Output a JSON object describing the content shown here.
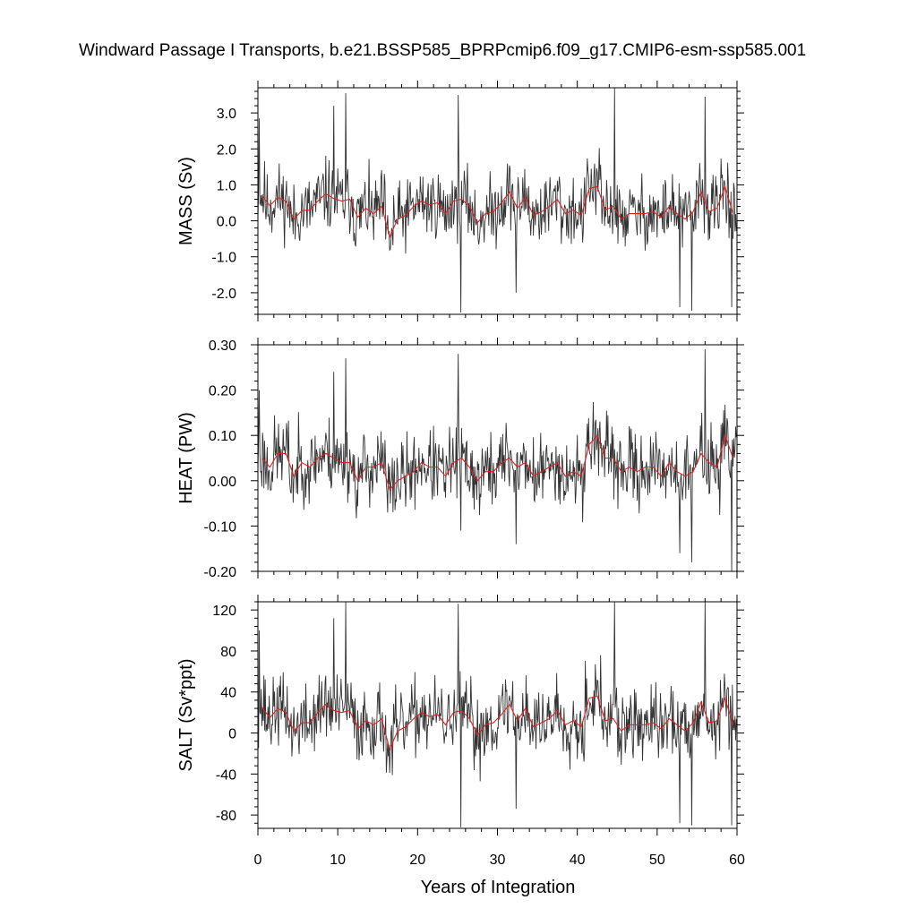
{
  "title": "Windward Passage I Transports, b.e21.BSSP585_BPRPcmip6.f09_g17.CMIP6-esm-ssp585.001",
  "xlabel": "Years of Integration",
  "colors": {
    "raw": "#333333",
    "annual_mean": "#dd2222",
    "axes": "#000000"
  },
  "chart_data": [
    {
      "type": "line",
      "name": "mass",
      "ylabel": "MASS (Sv)",
      "xlim": [
        0,
        60
      ],
      "ylim": [
        -2.6,
        3.7
      ],
      "yticks": [
        -2.0,
        -1.0,
        0.0,
        1.0,
        2.0,
        3.0
      ],
      "ytick_labels": [
        "-2.0",
        "-1.0",
        "0.0",
        "1.0",
        "2.0",
        "3.0"
      ],
      "xticks": [
        0,
        10,
        20,
        30,
        40,
        50,
        60
      ],
      "xtick_labels": [
        "0",
        "10",
        "20",
        "30",
        "40",
        "50",
        "60"
      ],
      "show_xtick_labels": false,
      "annual_mean": [
        0.7,
        0.42,
        0.65,
        0.55,
        0.05,
        0.28,
        0.3,
        0.55,
        0.75,
        0.62,
        0.55,
        0.6,
        0.1,
        0.35,
        0.2,
        0.4,
        -0.45,
        0.05,
        0.15,
        0.4,
        0.55,
        0.45,
        0.5,
        0.2,
        0.55,
        0.6,
        0.4,
        -0.05,
        0.2,
        0.25,
        0.5,
        0.8,
        0.35,
        0.65,
        0.15,
        0.25,
        0.4,
        0.6,
        0.2,
        0.3,
        0.15,
        0.9,
        0.95,
        0.3,
        0.4,
        0.05,
        0.2,
        0.2,
        0.2,
        0.25,
        0.1,
        0.4,
        0.2,
        0.05,
        0.25,
        0.8,
        0.25,
        0.35,
        0.95,
        0.2
      ],
      "extremes": [
        [
          0.2,
          2.85
        ],
        [
          11.0,
          3.55
        ],
        [
          25.1,
          3.5
        ],
        [
          25.4,
          -2.55
        ],
        [
          44.7,
          3.7
        ],
        [
          56.0,
          3.45
        ],
        [
          52.8,
          -2.4
        ],
        [
          54.3,
          -2.5
        ],
        [
          59.3,
          -2.4
        ],
        [
          32.3,
          -2.0
        ],
        [
          9.5,
          3.2
        ]
      ],
      "noise_amplitude": 0.9,
      "seed": 11
    },
    {
      "type": "line",
      "name": "heat",
      "ylabel": "HEAT (PW)",
      "xlim": [
        0,
        60
      ],
      "ylim": [
        -0.2,
        0.3
      ],
      "yticks": [
        -0.2,
        -0.1,
        0.0,
        0.1,
        0.2,
        0.3
      ],
      "ytick_labels": [
        "-0.20",
        "-0.10",
        "0.00",
        "0.10",
        "0.20",
        "0.30"
      ],
      "xticks": [
        0,
        10,
        20,
        30,
        40,
        50,
        60
      ],
      "xtick_labels": [
        "0",
        "10",
        "20",
        "30",
        "40",
        "50",
        "60"
      ],
      "show_xtick_labels": false,
      "annual_mean": [
        0.05,
        0.03,
        0.06,
        0.06,
        0.01,
        0.04,
        0.03,
        0.05,
        0.06,
        0.05,
        0.04,
        0.04,
        0.0,
        0.03,
        0.03,
        0.04,
        -0.02,
        0.0,
        0.01,
        0.02,
        0.04,
        0.03,
        0.03,
        0.01,
        0.04,
        0.05,
        0.03,
        0.0,
        0.02,
        0.02,
        0.04,
        0.05,
        0.03,
        0.04,
        0.01,
        0.02,
        0.03,
        0.04,
        0.01,
        0.02,
        0.01,
        0.08,
        0.1,
        0.05,
        0.05,
        0.02,
        0.03,
        0.02,
        0.03,
        0.03,
        0.01,
        0.04,
        0.02,
        0.01,
        0.02,
        0.06,
        0.04,
        0.03,
        0.1,
        0.05
      ],
      "extremes": [
        [
          0.2,
          0.2
        ],
        [
          11.0,
          0.27
        ],
        [
          25.1,
          0.28
        ],
        [
          25.4,
          -0.11
        ],
        [
          56.0,
          0.29
        ],
        [
          54.3,
          -0.18
        ],
        [
          59.3,
          -0.2
        ],
        [
          32.3,
          -0.14
        ],
        [
          52.8,
          -0.16
        ],
        [
          9.5,
          0.24
        ]
      ],
      "noise_amplitude": 0.075,
      "seed": 23
    },
    {
      "type": "line",
      "name": "salt",
      "ylabel": "SALT (Sv*ppt)",
      "xlim": [
        0,
        60
      ],
      "ylim": [
        -93,
        128
      ],
      "yticks": [
        -80,
        -40,
        0,
        40,
        80,
        120
      ],
      "ytick_labels": [
        "-80",
        "-40",
        "0",
        "40",
        "80",
        "120"
      ],
      "xticks": [
        0,
        10,
        20,
        30,
        40,
        50,
        60
      ],
      "xtick_labels": [
        "0",
        "10",
        "20",
        "30",
        "40",
        "50",
        "60"
      ],
      "show_xtick_labels": true,
      "annual_mean": [
        25,
        15,
        24,
        20,
        2,
        10,
        10,
        20,
        28,
        22,
        20,
        22,
        4,
        12,
        8,
        14,
        -16,
        2,
        6,
        14,
        20,
        16,
        18,
        8,
        20,
        22,
        14,
        -2,
        8,
        10,
        18,
        28,
        12,
        24,
        6,
        10,
        14,
        22,
        8,
        12,
        6,
        34,
        36,
        12,
        14,
        2,
        8,
        8,
        8,
        10,
        4,
        14,
        8,
        2,
        10,
        30,
        10,
        12,
        34,
        8
      ],
      "extremes": [
        [
          0.2,
          100
        ],
        [
          11.0,
          128
        ],
        [
          25.1,
          126
        ],
        [
          25.4,
          -92
        ],
        [
          44.7,
          130
        ],
        [
          56.0,
          128
        ],
        [
          52.8,
          -88
        ],
        [
          54.3,
          -90
        ],
        [
          59.3,
          -90
        ],
        [
          32.3,
          -74
        ],
        [
          9.5,
          112
        ]
      ],
      "noise_amplitude": 33,
      "seed": 37
    }
  ]
}
